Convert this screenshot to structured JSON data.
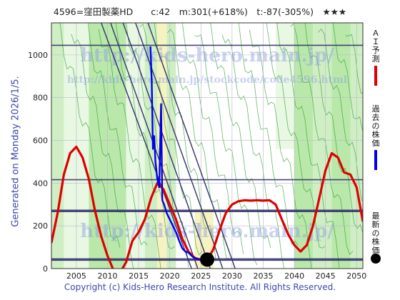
{
  "header": {
    "title": "4596=窪田製薬HD　　c:42　m:301(+618%)　t:-87(-305%)　★★★"
  },
  "side_label": "Generated on Monday 2026/1/5.",
  "watermark": {
    "line1": "http://kids-hero.main.jp/",
    "line2": "http://kids-hero.main.jp/stockcode/code4596.html",
    "line3": "http://kids-hero.main.jp/"
  },
  "legend": [
    {
      "label": "ＡＩ予測",
      "color": "#e00000",
      "marker": "line"
    },
    {
      "label": "過去の株価",
      "color": "#0000ee",
      "marker": "line"
    },
    {
      "label": "最新の株価",
      "color": "#000000",
      "marker": "dot"
    }
  ],
  "footer": "Copyright (c) Kids-Hero Research Institute. All Rights Reserved.",
  "chart_data": {
    "type": "line",
    "xlim": [
      2001,
      2051
    ],
    "ylim": [
      0,
      1150
    ],
    "x_ticks": [
      2005,
      2010,
      2015,
      2020,
      2025,
      2030,
      2035,
      2040,
      2045,
      2050
    ],
    "y_ticks": [
      0,
      200,
      400,
      600,
      800,
      1000
    ],
    "horizontal_levels": [
      1045,
      416,
      270,
      42
    ],
    "current_point": {
      "x": 2026.0,
      "y": 42
    },
    "series": [
      {
        "name": "ＡＩ予測",
        "color": "#e00000",
        "points": [
          [
            2001,
            120
          ],
          [
            2002,
            260
          ],
          [
            2003,
            440
          ],
          [
            2004,
            540
          ],
          [
            2005,
            570
          ],
          [
            2006,
            520
          ],
          [
            2007,
            420
          ],
          [
            2008,
            270
          ],
          [
            2009,
            150
          ],
          [
            2010,
            60
          ],
          [
            2011,
            -10
          ],
          [
            2012,
            -20
          ],
          [
            2013,
            30
          ],
          [
            2014,
            130
          ],
          [
            2015,
            170
          ],
          [
            2016,
            230
          ],
          [
            2017,
            330
          ],
          [
            2018,
            400
          ],
          [
            2019,
            370
          ],
          [
            2020,
            300
          ],
          [
            2021,
            230
          ],
          [
            2022,
            140
          ],
          [
            2023,
            80
          ],
          [
            2024,
            50
          ],
          [
            2025,
            40
          ],
          [
            2026,
            40
          ],
          [
            2027,
            90
          ],
          [
            2028,
            180
          ],
          [
            2029,
            260
          ],
          [
            2030,
            300
          ],
          [
            2031,
            315
          ],
          [
            2032,
            320
          ],
          [
            2033,
            318
          ],
          [
            2034,
            320
          ],
          [
            2035,
            318
          ],
          [
            2036,
            320
          ],
          [
            2037,
            300
          ],
          [
            2038,
            230
          ],
          [
            2039,
            160
          ],
          [
            2040,
            110
          ],
          [
            2041,
            80
          ],
          [
            2042,
            110
          ],
          [
            2043,
            200
          ],
          [
            2044,
            330
          ],
          [
            2045,
            460
          ],
          [
            2046,
            540
          ],
          [
            2047,
            520
          ],
          [
            2048,
            450
          ],
          [
            2049,
            440
          ],
          [
            2050,
            380
          ],
          [
            2051,
            220
          ]
        ]
      },
      {
        "name": "過去の株価",
        "color": "#0000ee",
        "points": [
          [
            2016.9,
            1040
          ],
          [
            2017.1,
            880
          ],
          [
            2017.3,
            560
          ],
          [
            2017.5,
            620
          ],
          [
            2017.7,
            500
          ],
          [
            2018.0,
            420
          ],
          [
            2018.3,
            380
          ],
          [
            2018.6,
            770
          ],
          [
            2018.8,
            320
          ],
          [
            2019.1,
            300
          ],
          [
            2019.5,
            260
          ],
          [
            2020.0,
            230
          ],
          [
            2020.5,
            200
          ],
          [
            2021.0,
            170
          ],
          [
            2021.5,
            130
          ],
          [
            2022.0,
            95
          ],
          [
            2022.5,
            80
          ],
          [
            2023.0,
            75
          ],
          [
            2023.5,
            60
          ],
          [
            2024.0,
            48
          ],
          [
            2024.5,
            45
          ],
          [
            2025.0,
            43
          ],
          [
            2025.5,
            42
          ],
          [
            2026.0,
            42
          ]
        ]
      }
    ]
  }
}
